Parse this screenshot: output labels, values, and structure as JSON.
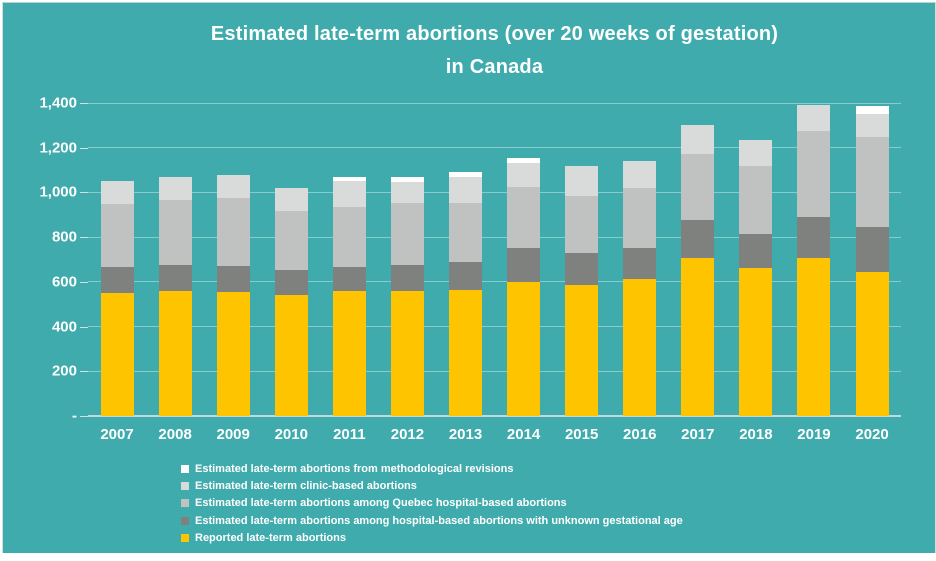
{
  "title": {
    "line1": "Estimated late-term abortions (over 20 weeks of gestation)",
    "line2": "in Canada"
  },
  "colors": {
    "background": "#3FABAD",
    "reported_yellow": "#FFC400",
    "unknown_dark_gray": "#7F817F",
    "quebec_medium_gray": "#C0C2C1",
    "clinic_light_gray": "#D9DBDA",
    "revisions_white": "#FFFFFF",
    "text": "#FFFFFF",
    "gridline": "rgba(255,255,255,0.38)",
    "axis_line": "#C3D8D8",
    "tick": "#CDE2E2"
  },
  "chart_data": {
    "type": "bar",
    "stacked": true,
    "title": "Estimated late-term abortions (over 20 weeks of gestation) in Canada",
    "categories": [
      "2007",
      "2008",
      "2009",
      "2010",
      "2011",
      "2012",
      "2013",
      "2014",
      "2015",
      "2016",
      "2017",
      "2018",
      "2019",
      "2020"
    ],
    "series": [
      {
        "name": "Reported late-term abortions",
        "color_key": "reported_yellow",
        "values": [
          550,
          557,
          555,
          540,
          560,
          560,
          565,
          600,
          585,
          615,
          705,
          660,
          705,
          645
        ]
      },
      {
        "name": "Estimated late-term abortions among hospital-based abortions with unknown gestational age",
        "color_key": "unknown_dark_gray",
        "values": [
          115,
          120,
          118,
          113,
          108,
          117,
          125,
          150,
          146,
          135,
          170,
          155,
          185,
          200
        ]
      },
      {
        "name": "Estimated late-term abortions among Quebec hospital-based abortions",
        "color_key": "quebec_medium_gray",
        "values": [
          283,
          290,
          300,
          265,
          267,
          278,
          265,
          273,
          254,
          268,
          295,
          305,
          385,
          405
        ]
      },
      {
        "name": "Estimated late-term clinic-based abortions",
        "color_key": "clinic_light_gray",
        "values": [
          102,
          103,
          107,
          102,
          115,
          90,
          115,
          107,
          135,
          122,
          130,
          115,
          115,
          100
        ]
      },
      {
        "name": "Estimated late-term abortions from methodological revisions",
        "color_key": "revisions_white",
        "values": [
          0,
          0,
          0,
          0,
          20,
          25,
          20,
          25,
          0,
          0,
          0,
          0,
          0,
          35
        ]
      }
    ],
    "totals": [
      1050,
      1070,
      1080,
      1020,
      1070,
      1070,
      1090,
      1155,
      1120,
      1140,
      1300,
      1235,
      1390,
      1385
    ],
    "ylim": [
      0,
      1400
    ],
    "ytick_interval": 200,
    "ytick_labels_bottom_to_top": [
      "-",
      "200",
      "400",
      "600",
      "800",
      "1,000",
      "1,200",
      "1,400"
    ],
    "grid": true,
    "legend_position": "bottom-left",
    "legend_order_top_to_bottom": [
      "Estimated late-term abortions from methodological revisions",
      "Estimated late-term clinic-based abortions",
      "Estimated late-term abortions among Quebec hospital-based abortions",
      "Estimated late-term abortions among hospital-based abortions with unknown gestational age",
      "Reported late-term abortions"
    ]
  }
}
